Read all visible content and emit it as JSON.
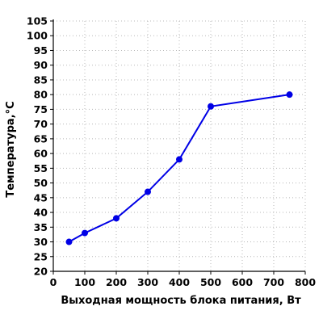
{
  "chart_data": {
    "type": "line",
    "title": "",
    "xlabel": "Выходная мощность блока питания, Вт",
    "ylabel": "Температура,°С",
    "xlim": [
      0,
      800
    ],
    "ylim": [
      20,
      105
    ],
    "xticks": [
      "0",
      "100",
      "200",
      "300",
      "400",
      "500",
      "600",
      "700",
      "800"
    ],
    "yticks": [
      "20",
      "25",
      "30",
      "35",
      "40",
      "45",
      "50",
      "55",
      "60",
      "65",
      "70",
      "75",
      "80",
      "85",
      "90",
      "95",
      "100",
      "105"
    ],
    "grid": true,
    "series": [
      {
        "x": [
          50,
          100,
          200,
          300,
          400,
          500,
          750
        ],
        "y": [
          30,
          33,
          38,
          47,
          58,
          76,
          80
        ],
        "color": "#0000e6"
      }
    ]
  }
}
